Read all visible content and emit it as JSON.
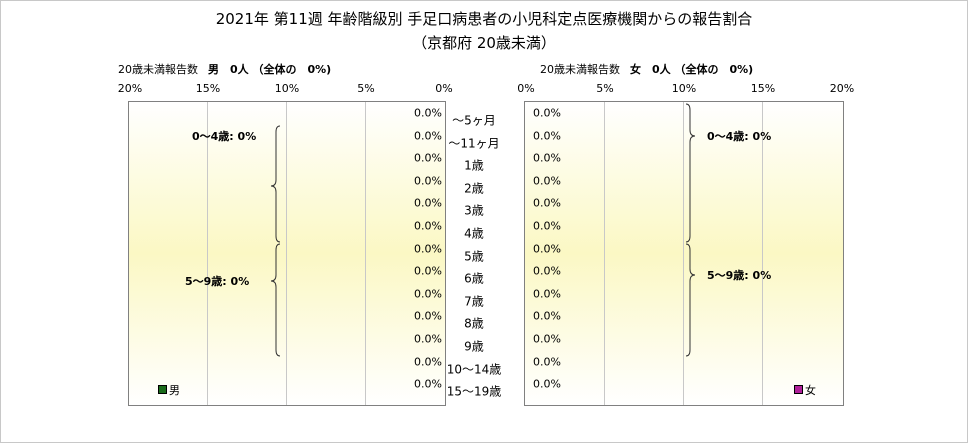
{
  "title": "2021年 第11週 年齢階級別 手足口病患者の小児科定点医療機関からの報告割合",
  "subtitle": "（京都府 20歳未満）",
  "colors": {
    "male": "#1a6b1a",
    "female": "#b0209a",
    "panel_fill": "#fbf8c4",
    "panel_border": "#808080",
    "grid": "#c8c8c8"
  },
  "male": {
    "label": "20歳未満報告数",
    "summary": "男　0人 （全体の　0%)",
    "legend": "男",
    "axis_ticks": [
      "20%",
      "15%",
      "10%",
      "5%",
      "0%"
    ],
    "groups": [
      "0～4歳: 0%",
      "5～9歳: 0%"
    ]
  },
  "female": {
    "label": "20歳未満報告数",
    "summary": "女　0人 （全体の　0%)",
    "legend": "女",
    "axis_ticks": [
      "0%",
      "5%",
      "10%",
      "15%",
      "20%"
    ],
    "groups": [
      "0～4歳: 0%",
      "5～9歳: 0%"
    ]
  },
  "chart_data": {
    "type": "bar",
    "orientation": "horizontal",
    "layout": "population-pyramid",
    "title": "2021年 第11週 年齢階級別 手足口病患者の小児科定点医療機関からの報告割合",
    "subtitle": "（京都府 20歳未満）",
    "categories": [
      "～5ヶ月",
      "～11ヶ月",
      "1歳",
      "2歳",
      "3歳",
      "4歳",
      "5歳",
      "6歳",
      "7歳",
      "8歳",
      "9歳",
      "10～14歳",
      "15～19歳"
    ],
    "value_unit": "%",
    "xlim": [
      0,
      20
    ],
    "grid": true,
    "series": [
      {
        "name": "男",
        "values": [
          0,
          0,
          0,
          0,
          0,
          0,
          0,
          0,
          0,
          0,
          0,
          0,
          0
        ],
        "labels": [
          "0.0%",
          "0.0%",
          "0.0%",
          "0.0%",
          "0.0%",
          "0.0%",
          "0.0%",
          "0.0%",
          "0.0%",
          "0.0%",
          "0.0%",
          "0.0%",
          "0.0%"
        ]
      },
      {
        "name": "女",
        "values": [
          0,
          0,
          0,
          0,
          0,
          0,
          0,
          0,
          0,
          0,
          0,
          0,
          0
        ],
        "labels": [
          "0.0%",
          "0.0%",
          "0.0%",
          "0.0%",
          "0.0%",
          "0.0%",
          "0.0%",
          "0.0%",
          "0.0%",
          "0.0%",
          "0.0%",
          "0.0%",
          "0.0%"
        ]
      }
    ]
  }
}
